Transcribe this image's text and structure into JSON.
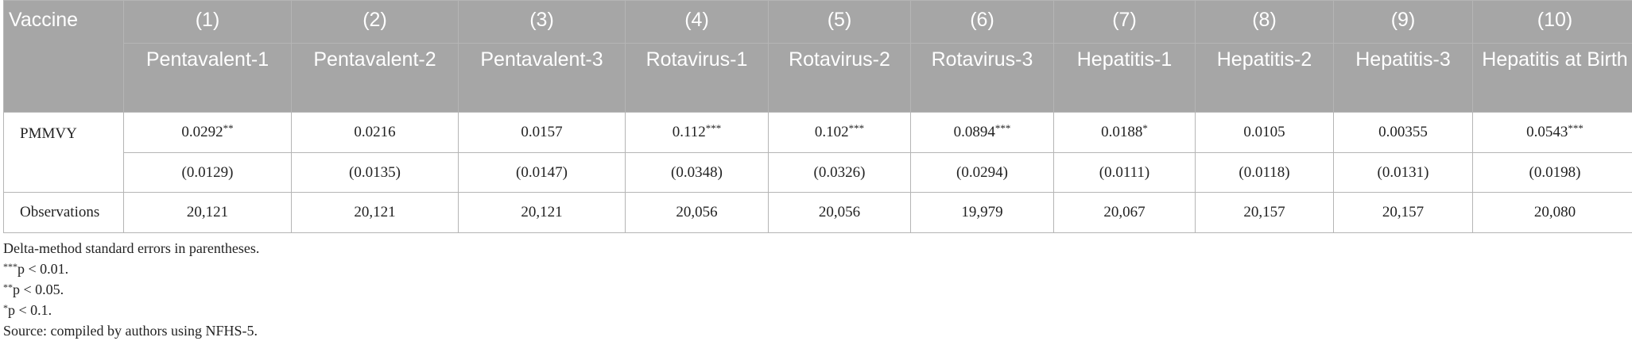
{
  "table": {
    "corner_header": "Vaccine",
    "columns": [
      {
        "num": "(1)",
        "name": "Pentavalent-1",
        "estimate": "0.0292",
        "stars": "**",
        "se": "(0.0129)",
        "observations": "20,121"
      },
      {
        "num": "(2)",
        "name": "Pentavalent-2",
        "estimate": "0.0216",
        "stars": "",
        "se": "(0.0135)",
        "observations": "20,121"
      },
      {
        "num": "(3)",
        "name": "Pentavalent-3",
        "estimate": "0.0157",
        "stars": "",
        "se": "(0.0147)",
        "observations": "20,121"
      },
      {
        "num": "(4)",
        "name": "Rotavirus-1",
        "estimate": "0.112",
        "stars": "***",
        "se": "(0.0348)",
        "observations": "20,056"
      },
      {
        "num": "(5)",
        "name": "Rotavirus-2",
        "estimate": "0.102",
        "stars": "***",
        "se": "(0.0326)",
        "observations": "20,056"
      },
      {
        "num": "(6)",
        "name": "Rotavirus-3",
        "estimate": "0.0894",
        "stars": "***",
        "se": "(0.0294)",
        "observations": "19,979"
      },
      {
        "num": "(7)",
        "name": "Hepatitis-1",
        "estimate": "0.0188",
        "stars": "*",
        "se": "(0.0111)",
        "observations": "20,067"
      },
      {
        "num": "(8)",
        "name": "Hepatitis-2",
        "estimate": "0.0105",
        "stars": "",
        "se": "(0.0118)",
        "observations": "20,157"
      },
      {
        "num": "(9)",
        "name": "Hepatitis-3",
        "estimate": "0.00355",
        "stars": "",
        "se": "(0.0131)",
        "observations": "20,157"
      },
      {
        "num": "(10)",
        "name": "Hepatitis at Birth",
        "estimate": "0.0543",
        "stars": "***",
        "se": "(0.0198)",
        "observations": "20,080"
      }
    ],
    "row_labels": {
      "pmmvy": "PMMVY",
      "observations": "Observations"
    }
  },
  "notes": {
    "se_note": "Delta-method standard errors in parentheses.",
    "sig": [
      {
        "stars": "***",
        "text": "p < 0.01."
      },
      {
        "stars": "**",
        "text": "p < 0.05."
      },
      {
        "stars": "*",
        "text": "p < 0.1."
      }
    ],
    "source": "Source: compiled by authors using NFHS-5."
  },
  "colors": {
    "header_bg": "#a6a6a6",
    "header_text": "#ffffff",
    "border": "#b5b5b5",
    "body_text": "#222222"
  }
}
